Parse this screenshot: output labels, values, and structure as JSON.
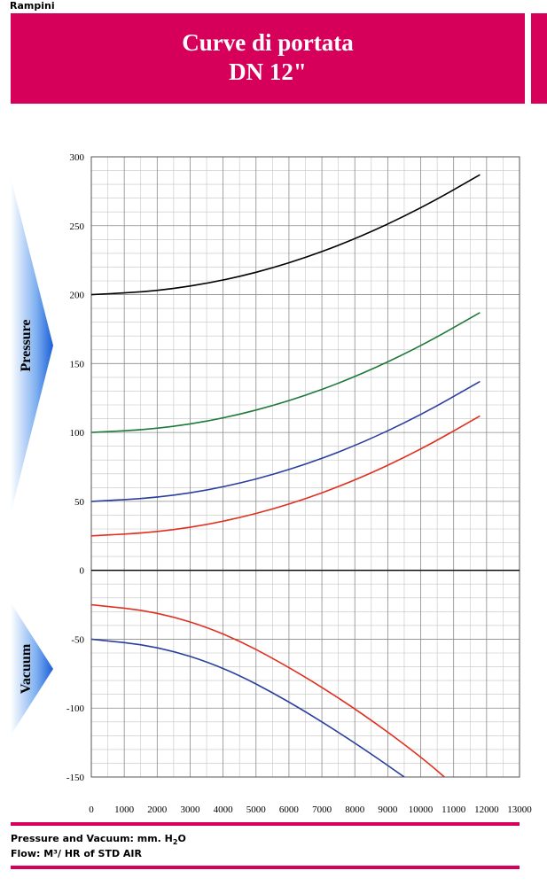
{
  "brand": "Rampini",
  "header": {
    "title_line1": "Curve di portata",
    "title_line2": "DN 12\""
  },
  "colors": {
    "accent": "#d6005a"
  },
  "chart_data": {
    "type": "line",
    "title": "",
    "xlabel": "",
    "ylabel": "",
    "region_labels": {
      "upper": "Pressure",
      "lower": "Vacuum"
    },
    "xlim": [
      0,
      13000
    ],
    "ylim": [
      -150,
      300
    ],
    "x_ticks": [
      0,
      1000,
      2000,
      3000,
      4000,
      5000,
      6000,
      7000,
      8000,
      9000,
      10000,
      11000,
      12000,
      13000
    ],
    "x_tick_labels": [
      "0",
      "1000",
      "2000",
      "3000",
      "4000",
      "5000",
      "6000",
      "7000",
      "8000",
      "9000",
      "10000",
      "11000",
      "12000",
      "13000"
    ],
    "y_ticks": [
      -150,
      -100,
      -50,
      0,
      50,
      100,
      150,
      200,
      250,
      300
    ],
    "y_tick_labels": [
      "-150",
      "-100",
      "-50",
      "0",
      "50",
      "100",
      "150",
      "200",
      "250",
      "300"
    ],
    "grid": true,
    "series": [
      {
        "color": "#000000",
        "x": [
          0,
          2000,
          4000,
          6000,
          8000,
          10000,
          11800
        ],
        "y": [
          200,
          202.5,
          210,
          222.5,
          240,
          262.5,
          287
        ]
      },
      {
        "color": "#1f7a3a",
        "x": [
          0,
          2000,
          4000,
          6000,
          8000,
          10000,
          11800
        ],
        "y": [
          100,
          102.5,
          110,
          122.5,
          140,
          162.5,
          187
        ]
      },
      {
        "color": "#2b3f9e",
        "x": [
          0,
          2000,
          4000,
          6000,
          8000,
          10000,
          11800
        ],
        "y": [
          50,
          52.5,
          60,
          72.5,
          90,
          112.5,
          137
        ]
      },
      {
        "color": "#e0301e",
        "x": [
          0,
          2000,
          4000,
          6000,
          8000,
          10000,
          11800
        ],
        "y": [
          25,
          27.5,
          35,
          47.5,
          65,
          87.5,
          112
        ]
      },
      {
        "color": "#e0301e",
        "x": [
          0,
          2000,
          4000,
          6000,
          8000,
          10000,
          11200
        ],
        "y": [
          -25,
          -30,
          -45,
          -70,
          -100,
          -135,
          -160
        ]
      },
      {
        "color": "#2b3f9e",
        "x": [
          0,
          2000,
          4000,
          6000,
          8000,
          9800
        ],
        "y": [
          -50,
          -55,
          -70,
          -95,
          -125,
          -155
        ]
      }
    ]
  },
  "footer": {
    "line1_prefix": "Pressure and Vacuum: mm. H",
    "line1_sub": "2",
    "line1_suffix": "O",
    "line2": "Flow: M³/ HR of STD AIR"
  }
}
